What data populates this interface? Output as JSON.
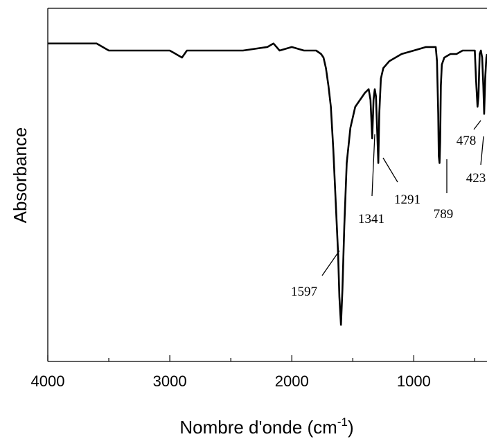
{
  "chart_data": {
    "type": "line",
    "title": "",
    "xlabel": "Nombre d'onde (cm",
    "xlabel_superscript": "-1",
    "xlabel_suffix": ")",
    "ylabel": "Absorbance",
    "xlim": [
      4000,
      400
    ],
    "x_reversed": true,
    "y_ticks_shown": false,
    "grid": false,
    "legend": "none",
    "x_ticks": [
      4000,
      3000,
      2000,
      1000
    ],
    "x_tick_labels": [
      "4000",
      "3000",
      "2000",
      "1000"
    ],
    "line_color": "#000000",
    "series": [
      {
        "x": [
          4000,
          3800,
          3600,
          3500,
          3400,
          3200,
          3000,
          2900,
          2860,
          2800,
          2600,
          2400,
          2200,
          2150,
          2100,
          2000,
          1900,
          1800,
          1760,
          1740,
          1720,
          1700,
          1680,
          1660,
          1640,
          1620,
          1610,
          1597,
          1585,
          1570,
          1550,
          1520,
          1480,
          1440,
          1400,
          1370,
          1355,
          1341,
          1330,
          1320,
          1310,
          1300,
          1291,
          1283,
          1270,
          1250,
          1200,
          1100,
          1000,
          900,
          850,
          820,
          810,
          800,
          795,
          789,
          784,
          778,
          770,
          750,
          700,
          650,
          600,
          550,
          520,
          500,
          490,
          478,
          470,
          460,
          450,
          440,
          430,
          423,
          415,
          405,
          400
        ],
        "y": [
          0.9,
          0.9,
          0.9,
          0.88,
          0.88,
          0.88,
          0.88,
          0.86,
          0.88,
          0.88,
          0.88,
          0.88,
          0.89,
          0.9,
          0.88,
          0.89,
          0.88,
          0.88,
          0.87,
          0.86,
          0.83,
          0.78,
          0.72,
          0.6,
          0.45,
          0.3,
          0.18,
          0.1,
          0.2,
          0.38,
          0.56,
          0.66,
          0.72,
          0.74,
          0.76,
          0.77,
          0.74,
          0.63,
          0.74,
          0.77,
          0.75,
          0.65,
          0.56,
          0.7,
          0.8,
          0.83,
          0.85,
          0.87,
          0.88,
          0.89,
          0.89,
          0.89,
          0.85,
          0.7,
          0.58,
          0.56,
          0.62,
          0.78,
          0.84,
          0.86,
          0.87,
          0.87,
          0.88,
          0.88,
          0.88,
          0.88,
          0.8,
          0.72,
          0.75,
          0.87,
          0.88,
          0.86,
          0.78,
          0.7,
          0.8,
          0.86,
          0.87
        ]
      }
    ],
    "annotations": [
      {
        "text": "1597",
        "x": 1597
      },
      {
        "text": "1341",
        "x": 1341
      },
      {
        "text": "1291",
        "x": 1291
      },
      {
        "text": "789",
        "x": 789
      },
      {
        "text": "478",
        "x": 478
      },
      {
        "text": "423",
        "x": 423
      }
    ]
  }
}
